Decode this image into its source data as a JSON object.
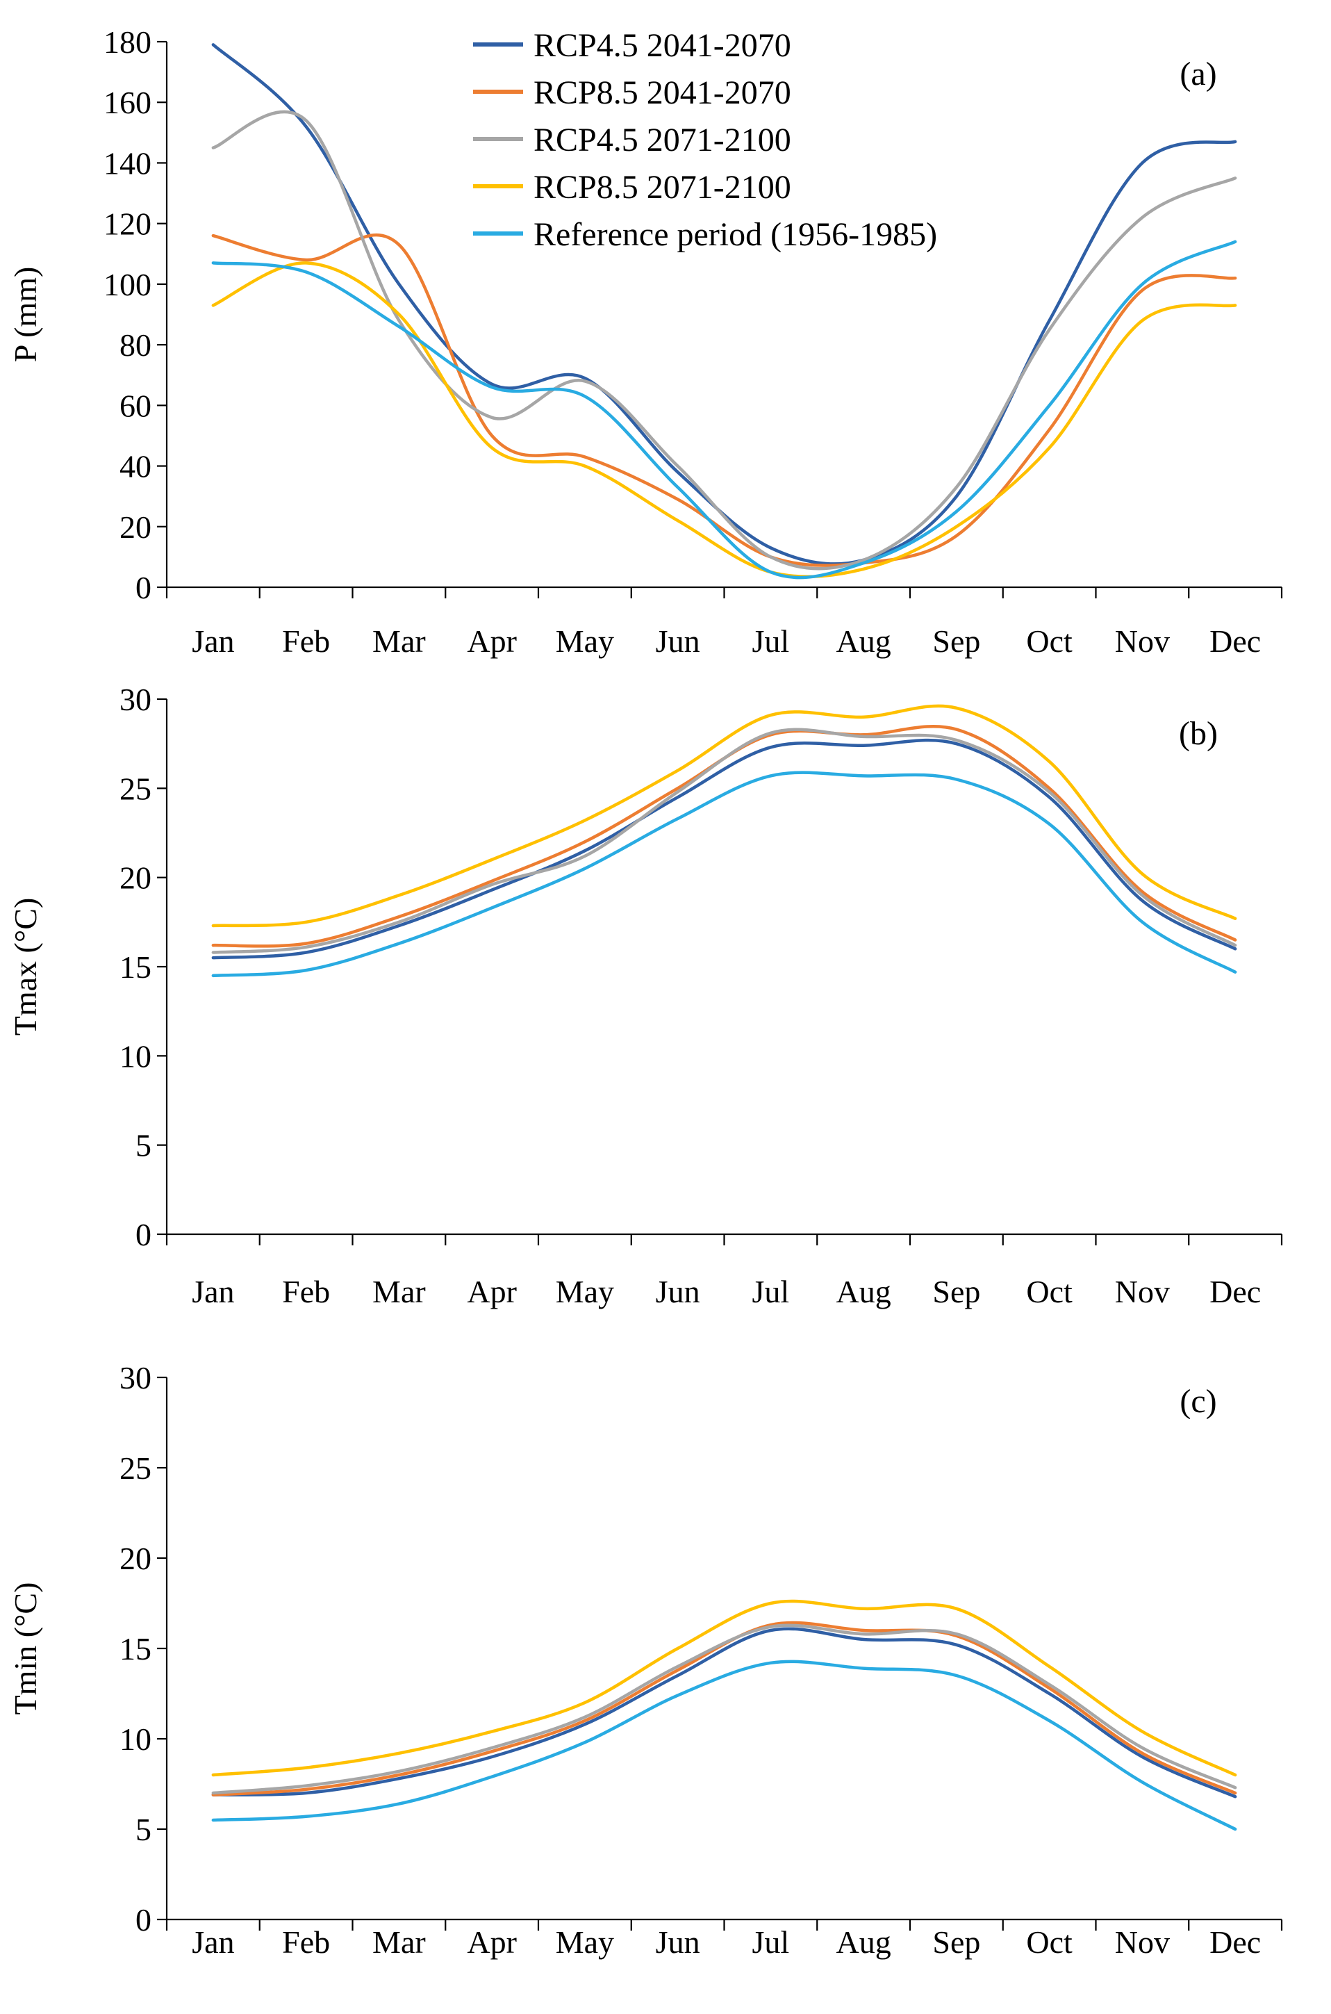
{
  "figure": {
    "background": "#ffffff",
    "axis_color": "#000000"
  },
  "legend": {
    "entries": [
      {
        "label": "RCP4.5 2041-2070",
        "color": "#2F5FA5"
      },
      {
        "label": "RCP8.5 2041-2070",
        "color": "#ED7D31"
      },
      {
        "label": "RCP4.5 2071-2100",
        "color": "#A6A6A6"
      },
      {
        "label": "RCP8.5 2071-2100",
        "color": "#FFC000"
      },
      {
        "label": "Reference period (1956-1985)",
        "color": "#29ABE2"
      }
    ]
  },
  "chart_data": [
    {
      "type": "line",
      "panel_label": "(a)",
      "title": "",
      "xlabel": "",
      "ylabel": "P (mm)",
      "ylim": [
        0,
        180
      ],
      "ytick_step": 20,
      "grid": false,
      "legend_visible": true,
      "legend_position": "top-inside",
      "categories": [
        "Jan",
        "Feb",
        "Mar",
        "Apr",
        "May",
        "Jun",
        "Jul",
        "Aug",
        "Sep",
        "Oct",
        "Nov",
        "Dec"
      ],
      "series": [
        {
          "name": "RCP4.5 2041-2070",
          "color": "#2F5FA5",
          "values": [
            179,
            152,
            100,
            67,
            69,
            38,
            13,
            9,
            30,
            88,
            140,
            147
          ]
        },
        {
          "name": "RCP8.5 2041-2070",
          "color": "#ED7D31",
          "values": [
            116,
            108,
            113,
            50,
            43,
            29,
            10,
            8,
            17,
            52,
            98,
            102
          ]
        },
        {
          "name": "RCP4.5 2071-2100",
          "color": "#A6A6A6",
          "values": [
            145,
            154,
            88,
            56,
            68,
            40,
            10,
            9,
            33,
            85,
            122,
            135
          ]
        },
        {
          "name": "RCP8.5 2071-2100",
          "color": "#FFC000",
          "values": [
            93,
            107,
            90,
            46,
            40,
            22,
            5,
            6,
            20,
            46,
            88,
            93
          ]
        },
        {
          "name": "Reference period (1956-1985)",
          "color": "#29ABE2",
          "values": [
            107,
            104,
            86,
            66,
            63,
            33,
            5,
            8,
            25,
            60,
            100,
            114
          ]
        }
      ]
    },
    {
      "type": "line",
      "panel_label": "(b)",
      "title": "",
      "xlabel": "",
      "ylabel": "Tmax (°C)",
      "ylim": [
        0,
        30
      ],
      "ytick_step": 5,
      "grid": false,
      "legend_visible": false,
      "legend_position": "none",
      "categories": [
        "Jan",
        "Feb",
        "Mar",
        "Apr",
        "May",
        "Jun",
        "Jul",
        "Aug",
        "Sep",
        "Oct",
        "Nov",
        "Dec"
      ],
      "series": [
        {
          "name": "RCP4.5 2041-2070",
          "color": "#2F5FA5",
          "values": [
            15.5,
            15.8,
            17.3,
            19.3,
            21.5,
            24.5,
            27.3,
            27.4,
            27.5,
            24.5,
            18.7,
            16.0
          ]
        },
        {
          "name": "RCP8.5 2041-2070",
          "color": "#ED7D31",
          "values": [
            16.2,
            16.3,
            17.8,
            19.8,
            22.0,
            25.0,
            28.0,
            28.0,
            28.3,
            25.0,
            19.2,
            16.5
          ]
        },
        {
          "name": "RCP4.5 2071-2100",
          "color": "#A6A6A6",
          "values": [
            15.8,
            16.1,
            17.5,
            19.6,
            21.2,
            24.8,
            28.1,
            27.9,
            27.7,
            24.8,
            19.0,
            16.2
          ]
        },
        {
          "name": "RCP8.5 2071-2100",
          "color": "#FFC000",
          "values": [
            17.3,
            17.5,
            19.0,
            21.0,
            23.2,
            26.0,
            29.1,
            29.0,
            29.5,
            26.5,
            20.2,
            17.7
          ]
        },
        {
          "name": "Reference period (1956-1985)",
          "color": "#29ABE2",
          "values": [
            14.5,
            14.8,
            16.3,
            18.3,
            20.5,
            23.3,
            25.7,
            25.7,
            25.5,
            23.0,
            17.5,
            14.7
          ]
        }
      ]
    },
    {
      "type": "line",
      "panel_label": "(c)",
      "title": "",
      "xlabel": "",
      "ylabel": "Tmin (°C)",
      "ylim": [
        0,
        30
      ],
      "ytick_step": 5,
      "grid": false,
      "legend_visible": false,
      "legend_position": "none",
      "categories": [
        "Jan",
        "Feb",
        "Mar",
        "Apr",
        "May",
        "Jun",
        "Jul",
        "Aug",
        "Sep",
        "Oct",
        "Nov",
        "Dec"
      ],
      "series": [
        {
          "name": "RCP4.5 2041-2070",
          "color": "#2F5FA5",
          "values": [
            6.9,
            7.0,
            7.8,
            9.0,
            10.8,
            13.5,
            16.0,
            15.5,
            15.2,
            12.5,
            9.0,
            6.8
          ]
        },
        {
          "name": "RCP8.5 2041-2070",
          "color": "#ED7D31",
          "values": [
            6.9,
            7.2,
            8.0,
            9.3,
            11.0,
            13.8,
            16.3,
            16.0,
            15.7,
            12.8,
            9.2,
            7.0
          ]
        },
        {
          "name": "RCP4.5 2071-2100",
          "color": "#A6A6A6",
          "values": [
            7.0,
            7.4,
            8.2,
            9.5,
            11.2,
            14.0,
            16.2,
            15.8,
            15.8,
            13.0,
            9.5,
            7.3
          ]
        },
        {
          "name": "RCP8.5 2071-2100",
          "color": "#FFC000",
          "values": [
            8.0,
            8.4,
            9.2,
            10.4,
            12.0,
            15.0,
            17.5,
            17.2,
            17.2,
            14.0,
            10.4,
            8.0
          ]
        },
        {
          "name": "Reference period (1956-1985)",
          "color": "#29ABE2",
          "values": [
            5.5,
            5.7,
            6.4,
            7.9,
            9.8,
            12.4,
            14.2,
            13.9,
            13.5,
            11.0,
            7.6,
            5.0
          ]
        }
      ]
    }
  ]
}
